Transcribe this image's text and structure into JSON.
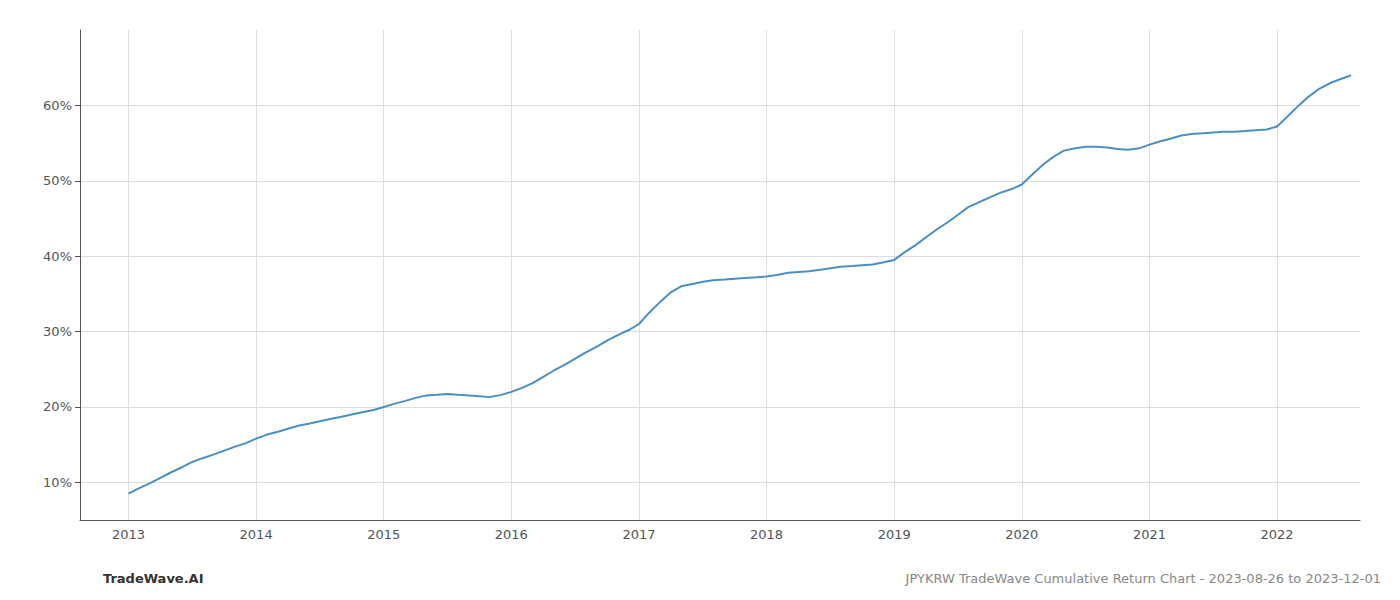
{
  "chart_data": {
    "type": "line",
    "title": "JPYKRW TradeWave Cumulative Return Chart - 2023-08-26 to 2023-12-01",
    "annotations": [
      "TradeWave.AI"
    ],
    "x": [
      2013.0,
      2013.08,
      2013.17,
      2013.25,
      2013.33,
      2013.42,
      2013.5,
      2013.58,
      2013.67,
      2013.75,
      2013.83,
      2013.92,
      2014.0,
      2014.08,
      2014.17,
      2014.25,
      2014.33,
      2014.42,
      2014.5,
      2014.58,
      2014.67,
      2014.75,
      2014.83,
      2014.92,
      2015.0,
      2015.08,
      2015.17,
      2015.25,
      2015.33,
      2015.42,
      2015.5,
      2015.58,
      2015.67,
      2015.75,
      2015.83,
      2015.92,
      2016.0,
      2016.08,
      2016.17,
      2016.25,
      2016.33,
      2016.42,
      2016.5,
      2016.58,
      2016.67,
      2016.75,
      2016.83,
      2016.92,
      2017.0,
      2017.08,
      2017.17,
      2017.25,
      2017.33,
      2017.42,
      2017.5,
      2017.58,
      2017.67,
      2017.75,
      2017.83,
      2017.92,
      2018.0,
      2018.08,
      2018.17,
      2018.25,
      2018.33,
      2018.42,
      2018.5,
      2018.58,
      2018.67,
      2018.75,
      2018.83,
      2018.92,
      2019.0,
      2019.08,
      2019.17,
      2019.25,
      2019.33,
      2019.42,
      2019.5,
      2019.58,
      2019.67,
      2019.75,
      2019.83,
      2019.92,
      2020.0,
      2020.08,
      2020.17,
      2020.25,
      2020.33,
      2020.42,
      2020.5,
      2020.58,
      2020.67,
      2020.75,
      2020.83,
      2020.92,
      2021.0,
      2021.08,
      2021.17,
      2021.25,
      2021.33,
      2021.42,
      2021.5,
      2021.58,
      2021.67,
      2021.75,
      2021.83,
      2021.92,
      2022.0,
      2022.08,
      2022.17,
      2022.25,
      2022.33,
      2022.42,
      2022.5,
      2022.58
    ],
    "values": [
      8.5,
      9.2,
      9.9,
      10.6,
      11.3,
      12.0,
      12.7,
      13.2,
      13.7,
      14.2,
      14.7,
      15.2,
      15.8,
      16.3,
      16.7,
      17.1,
      17.5,
      17.8,
      18.1,
      18.4,
      18.7,
      19.0,
      19.3,
      19.6,
      20.0,
      20.4,
      20.8,
      21.2,
      21.5,
      21.6,
      21.7,
      21.6,
      21.5,
      21.4,
      21.3,
      21.6,
      22.0,
      22.5,
      23.2,
      24.0,
      24.8,
      25.6,
      26.4,
      27.2,
      28.0,
      28.8,
      29.5,
      30.2,
      31.0,
      32.5,
      34.0,
      35.2,
      36.0,
      36.3,
      36.6,
      36.8,
      36.9,
      37.0,
      37.1,
      37.2,
      37.3,
      37.5,
      37.8,
      37.9,
      38.0,
      38.2,
      38.4,
      38.6,
      38.7,
      38.8,
      38.9,
      39.2,
      39.5,
      40.5,
      41.5,
      42.5,
      43.5,
      44.5,
      45.5,
      46.5,
      47.2,
      47.8,
      48.4,
      48.9,
      49.5,
      50.8,
      52.2,
      53.2,
      54.0,
      54.3,
      54.5,
      54.5,
      54.4,
      54.2,
      54.1,
      54.3,
      54.8,
      55.2,
      55.6,
      56.0,
      56.2,
      56.3,
      56.4,
      56.5,
      56.5,
      56.6,
      56.7,
      56.8,
      57.2,
      58.5,
      60.0,
      61.2,
      62.2,
      63.0,
      63.5,
      64.0
    ],
    "color": "#4a90c4",
    "xlim": [
      2012.62,
      2022.65
    ],
    "xticks": [
      2013,
      2014,
      2015,
      2016,
      2017,
      2018,
      2019,
      2020,
      2021,
      2022
    ],
    "ylim": [
      5,
      70
    ],
    "yticks": [
      {
        "value": 10,
        "label": "10%"
      },
      {
        "value": 20,
        "label": "20%"
      },
      {
        "value": 30,
        "label": "30%"
      },
      {
        "value": 40,
        "label": "40%"
      },
      {
        "value": 50,
        "label": "50%"
      },
      {
        "value": 60,
        "label": "60%"
      }
    ],
    "grid": true
  }
}
